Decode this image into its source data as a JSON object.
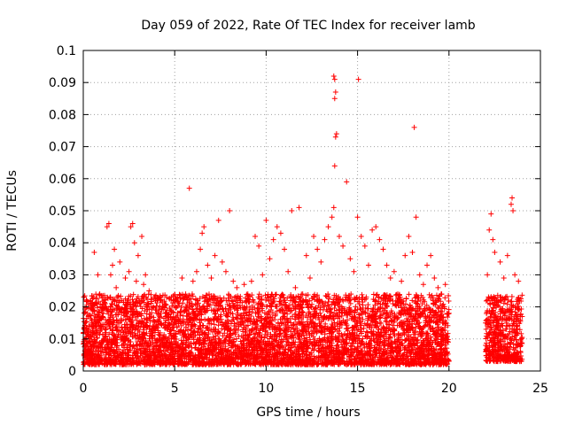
{
  "chart_data": {
    "type": "scatter",
    "title": "Day 059 of 2022, Rate Of TEC Index for receiver lamb",
    "xlabel": "GPS time / hours",
    "ylabel": "ROTI / TECUs",
    "xlim": [
      0,
      25
    ],
    "ylim": [
      0,
      0.1
    ],
    "x_ticks": [
      0,
      5,
      10,
      15,
      20,
      25
    ],
    "y_ticks": [
      0,
      0.01,
      0.02,
      0.03,
      0.04,
      0.05,
      0.06,
      0.07,
      0.08,
      0.09,
      0.1
    ],
    "x_tick_labels": [
      "0",
      "5",
      "10",
      "15",
      "20",
      "25"
    ],
    "y_tick_labels": [
      "0",
      "0.01",
      "0.02",
      "0.03",
      "0.04",
      "0.05",
      "0.06",
      "0.07",
      "0.08",
      "0.09",
      "0.1"
    ],
    "grid": true,
    "marker": "+",
    "color": "#ff0000",
    "series": [
      {
        "values_xy": [
          [
            0.1,
            0.012
          ],
          [
            0.1,
            0.02
          ],
          [
            0.2,
            0.018
          ],
          [
            0.3,
            0.006
          ],
          [
            0.3,
            0.014
          ],
          [
            0.4,
            0.022
          ],
          [
            0.5,
            0.009
          ],
          [
            0.6,
            0.016
          ],
          [
            0.6,
            0.037
          ],
          [
            0.7,
            0.011
          ],
          [
            0.8,
            0.03
          ],
          [
            0.9,
            0.024
          ],
          [
            1.0,
            0.013
          ],
          [
            1.1,
            0.018
          ],
          [
            1.2,
            0.021
          ],
          [
            1.3,
            0.045
          ],
          [
            1.4,
            0.046
          ],
          [
            1.5,
            0.03
          ],
          [
            1.6,
            0.033
          ],
          [
            1.7,
            0.038
          ],
          [
            1.8,
            0.026
          ],
          [
            1.9,
            0.015
          ],
          [
            2.0,
            0.034
          ],
          [
            2.1,
            0.022
          ],
          [
            2.2,
            0.012
          ],
          [
            2.3,
            0.029
          ],
          [
            2.4,
            0.017
          ],
          [
            2.5,
            0.031
          ],
          [
            2.6,
            0.045
          ],
          [
            2.7,
            0.046
          ],
          [
            2.8,
            0.04
          ],
          [
            2.9,
            0.028
          ],
          [
            3.0,
            0.036
          ],
          [
            3.1,
            0.021
          ],
          [
            3.2,
            0.042
          ],
          [
            3.3,
            0.027
          ],
          [
            3.4,
            0.03
          ],
          [
            3.5,
            0.016
          ],
          [
            3.6,
            0.025
          ],
          [
            3.8,
            0.014
          ],
          [
            4.0,
            0.019
          ],
          [
            4.2,
            0.011
          ],
          [
            4.5,
            0.017
          ],
          [
            4.8,
            0.013
          ],
          [
            5.0,
            0.022
          ],
          [
            5.2,
            0.016
          ],
          [
            5.4,
            0.029
          ],
          [
            5.6,
            0.024
          ],
          [
            5.8,
            0.057
          ],
          [
            6.0,
            0.028
          ],
          [
            6.2,
            0.031
          ],
          [
            6.4,
            0.038
          ],
          [
            6.5,
            0.043
          ],
          [
            6.6,
            0.045
          ],
          [
            6.8,
            0.033
          ],
          [
            7.0,
            0.029
          ],
          [
            7.2,
            0.036
          ],
          [
            7.4,
            0.047
          ],
          [
            7.6,
            0.034
          ],
          [
            7.8,
            0.031
          ],
          [
            8.0,
            0.05
          ],
          [
            8.2,
            0.028
          ],
          [
            8.4,
            0.026
          ],
          [
            8.6,
            0.022
          ],
          [
            8.8,
            0.027
          ],
          [
            9.0,
            0.024
          ],
          [
            9.2,
            0.028
          ],
          [
            9.4,
            0.042
          ],
          [
            9.6,
            0.039
          ],
          [
            9.8,
            0.03
          ],
          [
            10.0,
            0.047
          ],
          [
            10.2,
            0.035
          ],
          [
            10.4,
            0.041
          ],
          [
            10.6,
            0.045
          ],
          [
            10.8,
            0.043
          ],
          [
            11.0,
            0.038
          ],
          [
            11.2,
            0.031
          ],
          [
            11.4,
            0.05
          ],
          [
            11.6,
            0.026
          ],
          [
            11.8,
            0.051
          ],
          [
            12.0,
            0.024
          ],
          [
            12.2,
            0.036
          ],
          [
            12.4,
            0.029
          ],
          [
            12.6,
            0.042
          ],
          [
            12.8,
            0.038
          ],
          [
            13.0,
            0.034
          ],
          [
            13.2,
            0.041
          ],
          [
            13.4,
            0.045
          ],
          [
            13.6,
            0.048
          ],
          [
            13.7,
            0.051
          ],
          [
            13.75,
            0.064
          ],
          [
            13.8,
            0.073
          ],
          [
            13.85,
            0.074
          ],
          [
            13.75,
            0.085
          ],
          [
            13.8,
            0.087
          ],
          [
            13.7,
            0.092
          ],
          [
            13.75,
            0.091
          ],
          [
            14.0,
            0.042
          ],
          [
            14.2,
            0.039
          ],
          [
            14.4,
            0.059
          ],
          [
            14.6,
            0.035
          ],
          [
            14.8,
            0.031
          ],
          [
            15.0,
            0.048
          ],
          [
            15.05,
            0.091
          ],
          [
            15.2,
            0.042
          ],
          [
            15.4,
            0.039
          ],
          [
            15.6,
            0.033
          ],
          [
            15.8,
            0.044
          ],
          [
            16.0,
            0.045
          ],
          [
            16.2,
            0.041
          ],
          [
            16.4,
            0.038
          ],
          [
            16.6,
            0.033
          ],
          [
            16.8,
            0.029
          ],
          [
            17.0,
            0.031
          ],
          [
            17.2,
            0.024
          ],
          [
            17.4,
            0.028
          ],
          [
            17.6,
            0.036
          ],
          [
            17.8,
            0.042
          ],
          [
            18.0,
            0.037
          ],
          [
            18.1,
            0.076
          ],
          [
            18.2,
            0.048
          ],
          [
            18.4,
            0.03
          ],
          [
            18.6,
            0.027
          ],
          [
            18.8,
            0.033
          ],
          [
            19.0,
            0.036
          ],
          [
            19.2,
            0.029
          ],
          [
            19.4,
            0.026
          ],
          [
            19.6,
            0.024
          ],
          [
            19.8,
            0.027
          ],
          [
            20.0,
            0.018
          ],
          [
            22.0,
            0.015
          ],
          [
            22.1,
            0.03
          ],
          [
            22.2,
            0.044
          ],
          [
            22.3,
            0.049
          ],
          [
            22.4,
            0.041
          ],
          [
            22.5,
            0.037
          ],
          [
            22.6,
            0.022
          ],
          [
            22.8,
            0.034
          ],
          [
            23.0,
            0.029
          ],
          [
            23.2,
            0.036
          ],
          [
            23.4,
            0.052
          ],
          [
            23.45,
            0.054
          ],
          [
            23.5,
            0.05
          ],
          [
            23.6,
            0.03
          ],
          [
            23.8,
            0.028
          ],
          [
            24.0,
            0.017
          ]
        ]
      }
    ],
    "dense_bands": [
      {
        "x_start": 0.0,
        "x_end": 20.0,
        "y_low": 0.002,
        "y_high": 0.024
      },
      {
        "x_start": 22.0,
        "x_end": 24.0,
        "y_low": 0.003,
        "y_high": 0.024
      }
    ]
  }
}
